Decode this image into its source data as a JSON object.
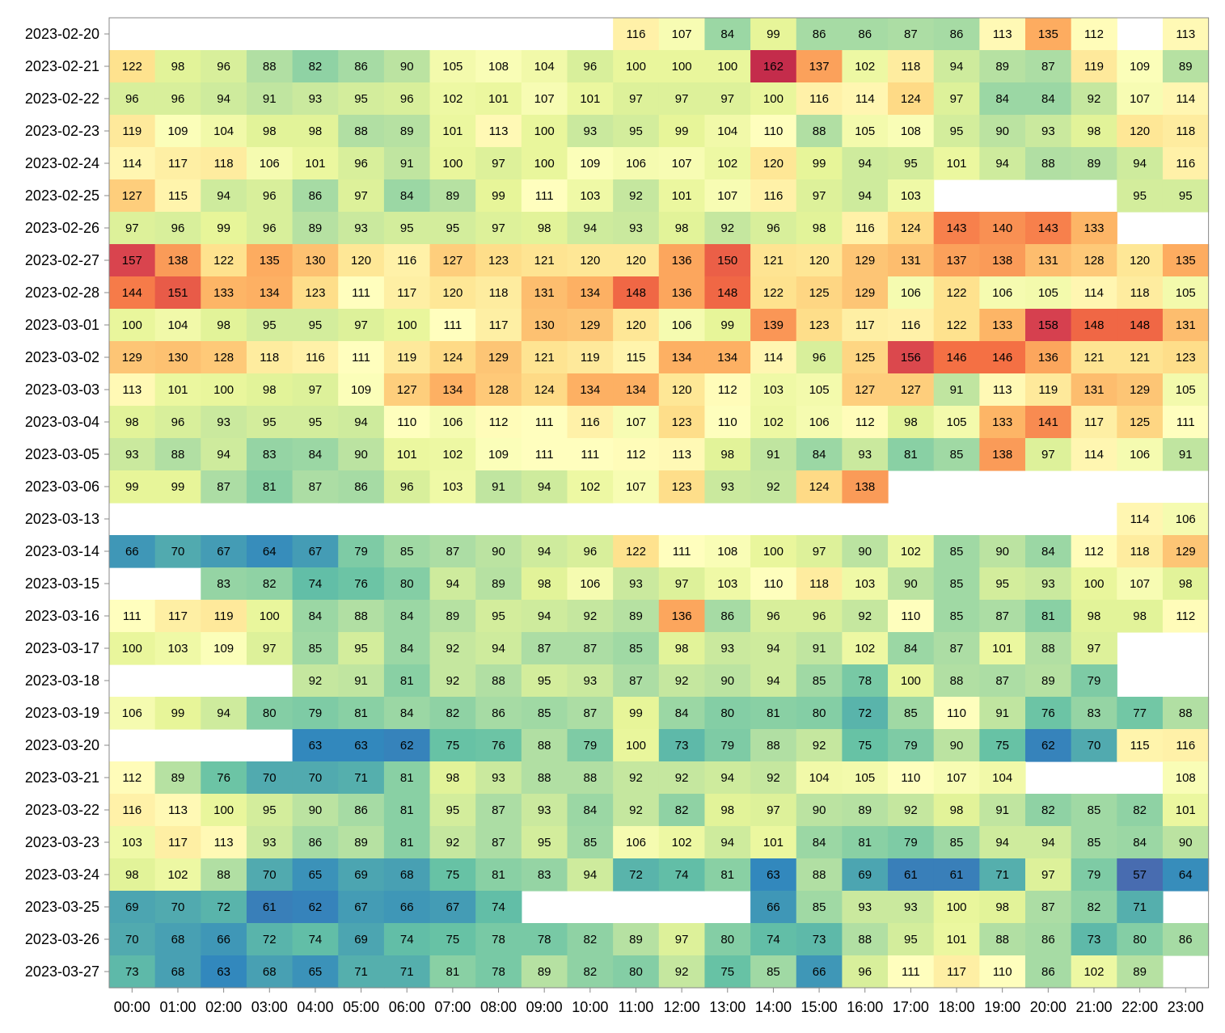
{
  "chart_data": {
    "type": "heatmap",
    "title": "",
    "xlabel": "",
    "ylabel": "",
    "x": [
      "00:00",
      "01:00",
      "02:00",
      "03:00",
      "04:00",
      "05:00",
      "06:00",
      "07:00",
      "08:00",
      "09:00",
      "10:00",
      "11:00",
      "12:00",
      "13:00",
      "14:00",
      "15:00",
      "16:00",
      "17:00",
      "18:00",
      "19:00",
      "20:00",
      "21:00",
      "22:00",
      "23:00"
    ],
    "y": [
      "2023-02-20",
      "2023-02-21",
      "2023-02-22",
      "2023-02-23",
      "2023-02-24",
      "2023-02-25",
      "2023-02-26",
      "2023-02-27",
      "2023-02-28",
      "2023-03-01",
      "2023-03-02",
      "2023-03-03",
      "2023-03-04",
      "2023-03-05",
      "2023-03-06",
      "2023-03-13",
      "2023-03-14",
      "2023-03-15",
      "2023-03-16",
      "2023-03-17",
      "2023-03-18",
      "2023-03-19",
      "2023-03-20",
      "2023-03-21",
      "2023-03-22",
      "2023-03-23",
      "2023-03-24",
      "2023-03-25",
      "2023-03-26",
      "2023-03-27"
    ],
    "values": [
      [
        null,
        null,
        null,
        null,
        null,
        null,
        null,
        null,
        null,
        null,
        null,
        116,
        107,
        84,
        99,
        86,
        86,
        87,
        86,
        113,
        135,
        112,
        null,
        113
      ],
      [
        122,
        98,
        96,
        88,
        82,
        86,
        90,
        105,
        108,
        104,
        96,
        100,
        100,
        100,
        162,
        137,
        102,
        118,
        94,
        89,
        87,
        119,
        109,
        89
      ],
      [
        96,
        96,
        94,
        91,
        93,
        95,
        96,
        102,
        101,
        107,
        101,
        97,
        97,
        97,
        100,
        116,
        114,
        124,
        97,
        84,
        84,
        92,
        107,
        114
      ],
      [
        119,
        109,
        104,
        98,
        98,
        88,
        89,
        101,
        113,
        100,
        93,
        95,
        99,
        104,
        110,
        88,
        105,
        108,
        95,
        90,
        93,
        98,
        120,
        118
      ],
      [
        114,
        117,
        118,
        106,
        101,
        96,
        91,
        100,
        97,
        100,
        109,
        106,
        107,
        102,
        120,
        99,
        94,
        95,
        101,
        94,
        88,
        89,
        94,
        116
      ],
      [
        127,
        115,
        94,
        96,
        86,
        97,
        84,
        89,
        99,
        111,
        103,
        92,
        101,
        107,
        116,
        97,
        94,
        103,
        null,
        null,
        null,
        null,
        95,
        95
      ],
      [
        97,
        96,
        99,
        96,
        89,
        93,
        95,
        95,
        97,
        98,
        94,
        93,
        98,
        92,
        96,
        98,
        116,
        124,
        143,
        140,
        143,
        133,
        null,
        null
      ],
      [
        157,
        138,
        122,
        135,
        130,
        120,
        116,
        127,
        123,
        121,
        120,
        120,
        136,
        150,
        121,
        120,
        129,
        131,
        137,
        138,
        131,
        128,
        120,
        135
      ],
      [
        144,
        151,
        133,
        134,
        123,
        111,
        117,
        120,
        118,
        131,
        134,
        148,
        136,
        148,
        122,
        125,
        129,
        106,
        122,
        106,
        105,
        114,
        118,
        105
      ],
      [
        100,
        104,
        98,
        95,
        95,
        97,
        100,
        111,
        117,
        130,
        129,
        120,
        106,
        99,
        139,
        123,
        117,
        116,
        122,
        133,
        158,
        148,
        148,
        131
      ],
      [
        129,
        130,
        128,
        118,
        116,
        111,
        119,
        124,
        129,
        121,
        119,
        115,
        134,
        134,
        114,
        96,
        125,
        156,
        146,
        146,
        136,
        121,
        121,
        123
      ],
      [
        113,
        101,
        100,
        98,
        97,
        109,
        127,
        134,
        128,
        124,
        134,
        134,
        120,
        112,
        103,
        105,
        127,
        127,
        91,
        113,
        119,
        131,
        129,
        105
      ],
      [
        98,
        96,
        93,
        95,
        95,
        94,
        110,
        106,
        112,
        111,
        116,
        107,
        123,
        110,
        102,
        106,
        112,
        98,
        105,
        133,
        141,
        117,
        125,
        111
      ],
      [
        93,
        88,
        94,
        83,
        84,
        90,
        101,
        102,
        109,
        111,
        111,
        112,
        113,
        98,
        91,
        84,
        93,
        81,
        85,
        138,
        97,
        114,
        106,
        91
      ],
      [
        99,
        99,
        87,
        81,
        87,
        86,
        96,
        103,
        91,
        94,
        102,
        107,
        123,
        93,
        92,
        124,
        138,
        null,
        null,
        null,
        null,
        null,
        null,
        null
      ],
      [
        null,
        null,
        null,
        null,
        null,
        null,
        null,
        null,
        null,
        null,
        null,
        null,
        null,
        null,
        null,
        null,
        null,
        null,
        null,
        null,
        null,
        null,
        114,
        106
      ],
      [
        66,
        70,
        67,
        64,
        67,
        79,
        85,
        87,
        90,
        94,
        96,
        122,
        111,
        108,
        100,
        97,
        90,
        102,
        85,
        90,
        84,
        112,
        118,
        129
      ],
      [
        null,
        null,
        83,
        82,
        74,
        76,
        80,
        94,
        89,
        98,
        106,
        93,
        97,
        103,
        110,
        118,
        103,
        90,
        85,
        95,
        93,
        100,
        107,
        98
      ],
      [
        111,
        117,
        119,
        100,
        84,
        88,
        84,
        89,
        95,
        94,
        92,
        89,
        136,
        86,
        96,
        96,
        92,
        110,
        85,
        87,
        81,
        98,
        98,
        112
      ],
      [
        100,
        103,
        109,
        97,
        85,
        95,
        84,
        92,
        94,
        87,
        87,
        85,
        98,
        93,
        94,
        91,
        102,
        84,
        87,
        101,
        88,
        97,
        null,
        null
      ],
      [
        null,
        null,
        null,
        null,
        92,
        91,
        81,
        92,
        88,
        95,
        93,
        87,
        92,
        90,
        94,
        85,
        78,
        100,
        88,
        87,
        89,
        79,
        null,
        null
      ],
      [
        106,
        99,
        94,
        80,
        79,
        81,
        84,
        82,
        86,
        85,
        87,
        99,
        84,
        80,
        81,
        80,
        72,
        85,
        110,
        91,
        76,
        83,
        77,
        88
      ],
      [
        null,
        null,
        null,
        null,
        63,
        63,
        62,
        75,
        76,
        88,
        79,
        100,
        73,
        79,
        88,
        92,
        75,
        79,
        90,
        75,
        62,
        70,
        115,
        116
      ],
      [
        112,
        89,
        76,
        70,
        70,
        71,
        81,
        98,
        93,
        88,
        88,
        92,
        92,
        94,
        92,
        104,
        105,
        110,
        107,
        104,
        null,
        null,
        null,
        108
      ],
      [
        116,
        113,
        100,
        95,
        90,
        86,
        81,
        95,
        87,
        93,
        84,
        92,
        82,
        98,
        97,
        90,
        89,
        92,
        98,
        91,
        82,
        85,
        82,
        101
      ],
      [
        103,
        117,
        113,
        93,
        86,
        89,
        81,
        92,
        87,
        95,
        85,
        106,
        102,
        94,
        101,
        84,
        81,
        79,
        85,
        94,
        94,
        85,
        84,
        90
      ],
      [
        98,
        102,
        88,
        70,
        65,
        69,
        68,
        75,
        81,
        83,
        94,
        72,
        74,
        81,
        63,
        88,
        69,
        61,
        61,
        71,
        97,
        79,
        57,
        64
      ],
      [
        69,
        70,
        72,
        61,
        62,
        67,
        66,
        67,
        74,
        null,
        null,
        null,
        null,
        null,
        66,
        85,
        93,
        93,
        100,
        98,
        87,
        82,
        71,
        null
      ],
      [
        70,
        68,
        66,
        72,
        74,
        69,
        74,
        75,
        78,
        78,
        82,
        89,
        97,
        80,
        74,
        73,
        88,
        95,
        101,
        88,
        86,
        73,
        80,
        86
      ],
      [
        73,
        68,
        63,
        68,
        65,
        71,
        71,
        81,
        78,
        89,
        82,
        80,
        92,
        75,
        85,
        66,
        96,
        111,
        117,
        110,
        86,
        102,
        89,
        null
      ]
    ],
    "color_scale": "Spectral (reversed)",
    "color_domain": [
      57,
      162
    ],
    "legend": "none",
    "grid": false
  }
}
